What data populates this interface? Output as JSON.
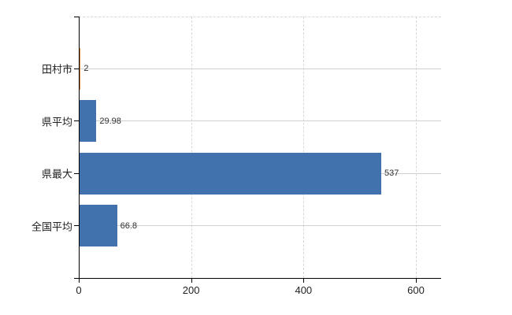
{
  "chart_data": {
    "type": "bar",
    "orientation": "horizontal",
    "title": "",
    "xlabel": "",
    "ylabel": "",
    "categories": [
      "田村市",
      "県平均",
      "県最大",
      "全国平均"
    ],
    "values": [
      2,
      29.98,
      537,
      66.8
    ],
    "value_labels": [
      "2",
      "29.98",
      "537",
      "66.8"
    ],
    "bar_colors": [
      "#e0883a",
      "#4172ae",
      "#4172ae",
      "#4172ae"
    ],
    "x_ticks": [
      0,
      200,
      400,
      600
    ],
    "x_tick_labels": [
      "0",
      "200",
      "400",
      "600"
    ],
    "xlim": [
      0,
      644
    ],
    "grid": true,
    "legend_position": "none",
    "background_color": "#ffffff"
  },
  "colors": {
    "bar_default": "#4172ae",
    "bar_highlight": "#e0883a",
    "gridline_dashed": "#d7d7d7",
    "gridline_row": "#ccd2cc",
    "axis": "#000000",
    "label_text": "#222222",
    "value_text": "#303030"
  }
}
